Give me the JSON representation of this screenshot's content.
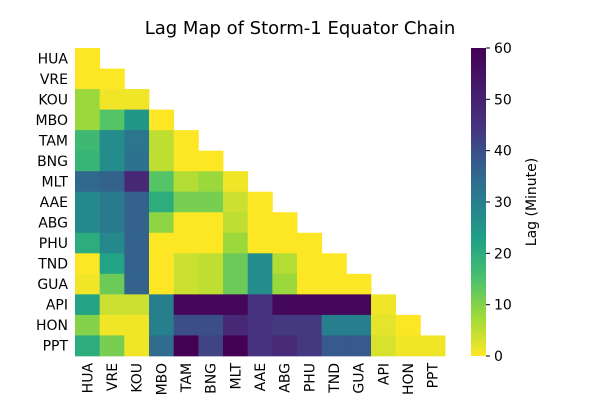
{
  "chart_data": {
    "type": "heatmap",
    "title": "Lag Map of Storm-1 Equator Chain",
    "rows": [
      "HUA",
      "VRE",
      "KOU",
      "MBO",
      "TAM",
      "BNG",
      "MLT",
      "AAE",
      "ABG",
      "PHU",
      "TND",
      "GUA",
      "API",
      "HON",
      "PPT"
    ],
    "cols": [
      "HUA",
      "VRE",
      "KOU",
      "MBO",
      "TAM",
      "BNG",
      "MLT",
      "AAE",
      "ABG",
      "PHU",
      "TND",
      "GUA",
      "API",
      "HON",
      "PPT"
    ],
    "mask": "upper-triangle",
    "values": [
      [
        0
      ],
      [
        0,
        0
      ],
      [
        8,
        1,
        1
      ],
      [
        8,
        14,
        25,
        0
      ],
      [
        17,
        27,
        32,
        5,
        0
      ],
      [
        18,
        27,
        33,
        5,
        0,
        0
      ],
      [
        35,
        36,
        48,
        14,
        6,
        8,
        1
      ],
      [
        28,
        31,
        36,
        20,
        11,
        11,
        4,
        0
      ],
      [
        28,
        31,
        36,
        9,
        0,
        0,
        5,
        0,
        0
      ],
      [
        20,
        28,
        36,
        0,
        0,
        0,
        8,
        0,
        0,
        0
      ],
      [
        0,
        22,
        36,
        0,
        4,
        5,
        12,
        27,
        6,
        0,
        0
      ],
      [
        1,
        12,
        36,
        0,
        4,
        5,
        12,
        27,
        8,
        0,
        0,
        0
      ],
      [
        22,
        4,
        4,
        30,
        58,
        58,
        58,
        45,
        58,
        58,
        58,
        58,
        1
      ],
      [
        10,
        1,
        1,
        30,
        40,
        40,
        48,
        45,
        44,
        44,
        30,
        30,
        2,
        0
      ],
      [
        20,
        11,
        1,
        34,
        60,
        42,
        60,
        45,
        47,
        44,
        38,
        38,
        3,
        1,
        1
      ]
    ],
    "colormap": "viridis_r",
    "colorbar": {
      "label": "Lag (Minute)",
      "min": 0,
      "max": 60,
      "ticks": [
        0,
        10,
        20,
        30,
        40,
        50,
        60
      ]
    }
  }
}
